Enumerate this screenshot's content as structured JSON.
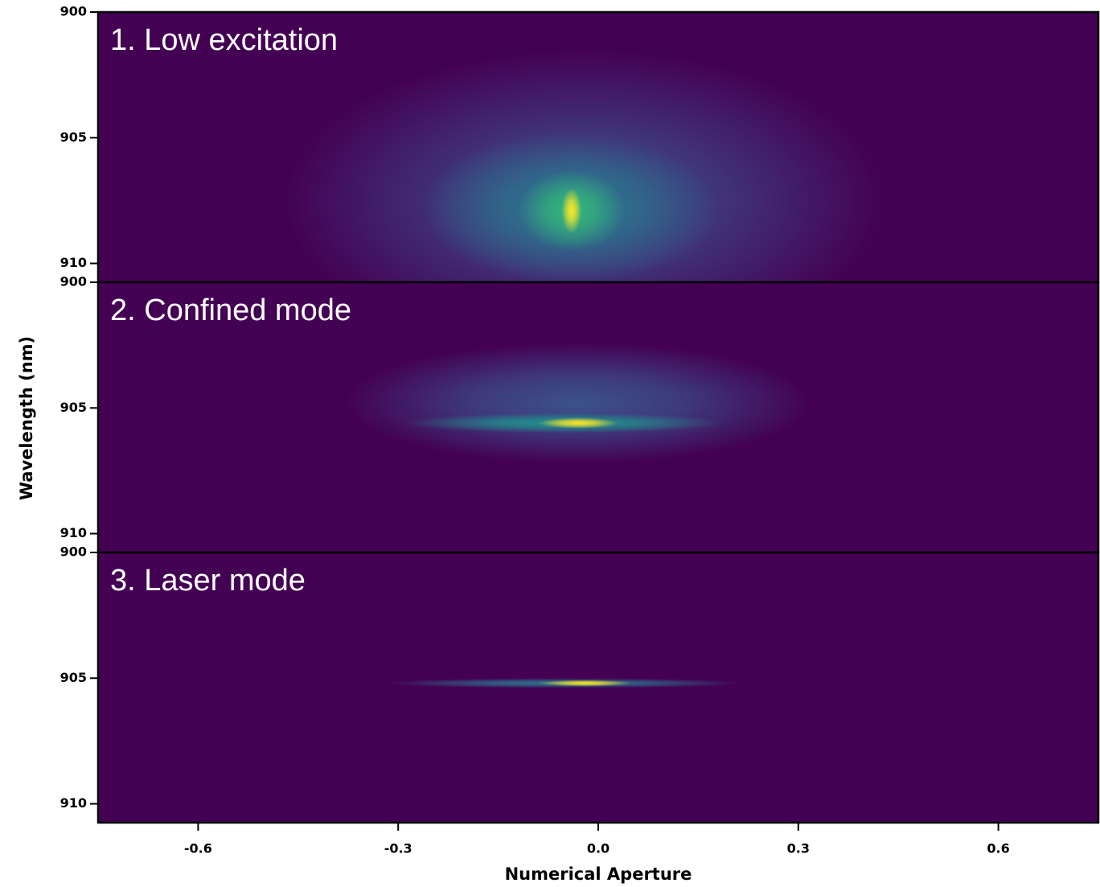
{
  "chart_data": {
    "type": "heatmap",
    "xlabel": "Numerical Aperture",
    "ylabel": "Wavelength (nm)",
    "xlim": [
      -0.75,
      0.75
    ],
    "xticks": [
      -0.6,
      -0.3,
      {
        "value": 0,
        "label": "0.0"
      },
      0.3,
      0.6
    ],
    "background": "#440154",
    "panels": [
      {
        "label": "1. Low excitation",
        "ylim": [
          900,
          910.75
        ],
        "yticks": [
          900,
          905,
          910
        ],
        "spots": [
          {
            "x": -0.02,
            "y": 907.5,
            "sx": 0.45,
            "sy": 6,
            "color": "#3e4a89"
          },
          {
            "x": -0.04,
            "y": 907.8,
            "sx": 0.22,
            "sy": 3,
            "color": "#2a788e"
          },
          {
            "x": -0.04,
            "y": 907.9,
            "sx": 0.08,
            "sy": 1.6,
            "color": "#35b779"
          },
          {
            "x": -0.04,
            "y": 907.9,
            "sx": 0.015,
            "sy": 0.9,
            "color": "#fde725"
          }
        ]
      },
      {
        "label": "2. Confined mode",
        "ylim": [
          900,
          910.75
        ],
        "yticks": [
          900,
          905,
          910
        ],
        "spots": [
          {
            "x": -0.03,
            "y": 904.8,
            "sx": 0.35,
            "sy": 2.4,
            "color": "#3b528b"
          },
          {
            "x": -0.05,
            "y": 905.6,
            "sx": 0.24,
            "sy": 0.4,
            "color": "#21918c"
          },
          {
            "x": -0.03,
            "y": 905.6,
            "sx": 0.06,
            "sy": 0.22,
            "color": "#fde725"
          }
        ]
      },
      {
        "label": "3. Laser mode",
        "ylim": [
          900,
          910.75
        ],
        "yticks": [
          900,
          905,
          910
        ],
        "spots": [
          {
            "x": -0.05,
            "y": 905.2,
            "sx": 0.27,
            "sy": 0.2,
            "color": "#2a788e"
          },
          {
            "x": -0.02,
            "y": 905.2,
            "sx": 0.07,
            "sy": 0.13,
            "color": "#fde725"
          }
        ]
      }
    ]
  }
}
